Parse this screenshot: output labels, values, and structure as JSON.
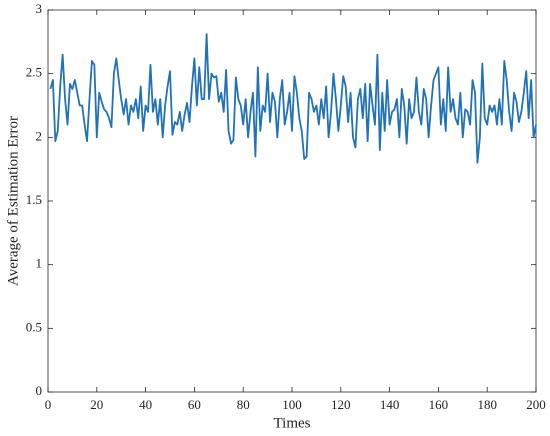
{
  "chart_data": {
    "type": "line",
    "xlabel": "Times",
    "ylabel": "Average of Estimation Error",
    "color": "#2272b8",
    "x": [
      1,
      2,
      3,
      4,
      5,
      6,
      7,
      8,
      9,
      10,
      11,
      12,
      13,
      14,
      15,
      16,
      17,
      18,
      19,
      20,
      21,
      22,
      23,
      24,
      25,
      26,
      27,
      28,
      29,
      30,
      31,
      32,
      33,
      34,
      35,
      36,
      37,
      38,
      39,
      40,
      41,
      42,
      43,
      44,
      45,
      46,
      47,
      48,
      49,
      50,
      51,
      52,
      53,
      54,
      55,
      56,
      57,
      58,
      59,
      60,
      61,
      62,
      63,
      64,
      65,
      66,
      67,
      68,
      69,
      70,
      71,
      72,
      73,
      74,
      75,
      76,
      77,
      78,
      79,
      80,
      81,
      82,
      83,
      84,
      85,
      86,
      87,
      88,
      89,
      90,
      91,
      92,
      93,
      94,
      95,
      96,
      97,
      98,
      99,
      100,
      101,
      102,
      103,
      104,
      105,
      106,
      107,
      108,
      109,
      110,
      111,
      112,
      113,
      114,
      115,
      116,
      117,
      118,
      119,
      120,
      121,
      122,
      123,
      124,
      125,
      126,
      127,
      128,
      129,
      130,
      131,
      132,
      133,
      134,
      135,
      136,
      137,
      138,
      139,
      140,
      141,
      142,
      143,
      144,
      145,
      146,
      147,
      148,
      149,
      150,
      151,
      152,
      153,
      154,
      155,
      156,
      157,
      158,
      159,
      160,
      161,
      162,
      163,
      164,
      165,
      166,
      167,
      168,
      169,
      170,
      171,
      172,
      173,
      174,
      175,
      176,
      177,
      178,
      179,
      180,
      181,
      182,
      183,
      184,
      185,
      186,
      187,
      188,
      189,
      190,
      191,
      192,
      193,
      194,
      195,
      196,
      197,
      198,
      199,
      200
    ],
    "values": [
      2.38,
      2.45,
      1.97,
      2.05,
      2.4,
      2.65,
      2.3,
      2.1,
      2.42,
      2.38,
      2.45,
      2.35,
      2.25,
      2.25,
      2.1,
      1.97,
      2.3,
      2.6,
      2.57,
      2.0,
      2.35,
      2.28,
      2.22,
      2.2,
      2.15,
      2.08,
      2.5,
      2.62,
      2.45,
      2.3,
      2.18,
      2.3,
      2.1,
      2.25,
      2.2,
      2.3,
      2.15,
      2.4,
      2.05,
      2.25,
      2.2,
      2.57,
      2.2,
      2.3,
      2.1,
      2.3,
      2.0,
      2.25,
      2.4,
      2.52,
      2.02,
      2.12,
      2.1,
      2.2,
      2.05,
      2.18,
      2.27,
      2.12,
      2.4,
      2.62,
      2.25,
      2.55,
      2.3,
      2.3,
      2.81,
      2.3,
      2.5,
      2.47,
      2.48,
      2.28,
      2.35,
      2.2,
      2.53,
      2.05,
      1.95,
      1.98,
      2.47,
      2.3,
      2.25,
      2.1,
      2.3,
      2.0,
      2.2,
      2.35,
      1.85,
      2.55,
      2.05,
      2.25,
      2.2,
      2.5,
      2.12,
      2.35,
      2.28,
      2.0,
      2.3,
      2.45,
      2.1,
      2.2,
      2.35,
      2.05,
      2.48,
      2.35,
      2.15,
      2.05,
      1.83,
      1.85,
      2.35,
      2.3,
      2.2,
      2.25,
      2.1,
      2.3,
      2.15,
      2.4,
      2.0,
      2.2,
      2.5,
      2.3,
      2.05,
      2.25,
      2.48,
      2.4,
      2.12,
      2.35,
      2.0,
      1.92,
      2.3,
      2.38,
      2.15,
      2.42,
      1.97,
      2.42,
      2.25,
      2.1,
      2.65,
      1.9,
      2.35,
      2.05,
      2.45,
      2.1,
      2.2,
      2.22,
      2.3,
      2.0,
      2.38,
      2.25,
      1.95,
      2.3,
      2.15,
      2.2,
      2.47,
      2.2,
      2.1,
      2.38,
      2.3,
      2.0,
      2.25,
      2.45,
      2.5,
      2.55,
      2.1,
      2.3,
      2.05,
      2.55,
      2.2,
      2.3,
      2.15,
      2.1,
      2.35,
      2.0,
      2.22,
      2.2,
      2.1,
      2.45,
      2.35,
      1.8,
      2.0,
      2.58,
      2.15,
      2.1,
      2.25,
      2.2,
      2.25,
      2.1,
      2.3,
      2.1,
      2.6,
      2.45,
      2.2,
      2.05,
      2.35,
      2.28,
      2.12,
      2.2,
      2.35,
      2.52,
      2.15,
      2.45,
      2.0,
      2.1
    ],
    "xlim": [
      0,
      200
    ],
    "xticks": [
      0,
      20,
      40,
      60,
      80,
      100,
      120,
      140,
      160,
      180,
      200
    ],
    "ylim": [
      0,
      3
    ],
    "yticks": [
      0,
      0.5,
      1,
      1.5,
      2,
      2.5,
      3
    ]
  }
}
